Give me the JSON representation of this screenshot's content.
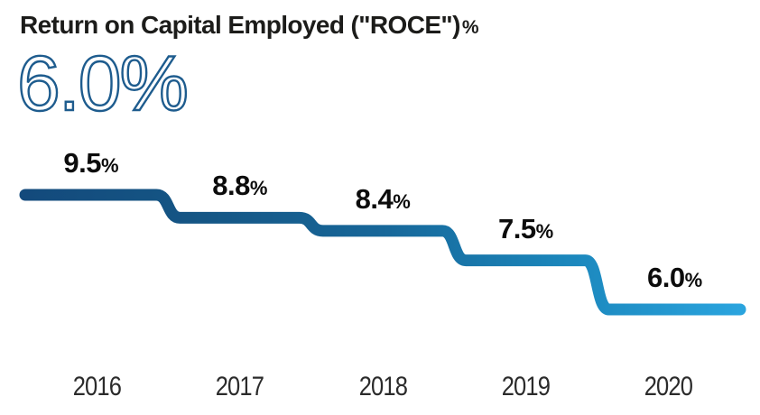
{
  "header": {
    "title": "Return on Capital Employed (\"ROCE\")",
    "title_suffix": "%",
    "headline_value": "6.0%"
  },
  "chart_data": {
    "type": "line",
    "subtype": "step-descending",
    "title": "Return on Capital Employed (\"ROCE\") %",
    "categories": [
      "2016",
      "2017",
      "2018",
      "2019",
      "2020"
    ],
    "values": [
      9.5,
      8.8,
      8.4,
      7.5,
      6.0
    ],
    "value_labels": [
      "9.5%",
      "8.8%",
      "8.4%",
      "7.5%",
      "6.0%"
    ],
    "xlabel": "",
    "ylabel": "",
    "ylim": [
      6.0,
      9.5
    ],
    "grid": false,
    "legend": false,
    "line_gradient": [
      "#134a7c",
      "#155685",
      "#176799",
      "#1b86bb",
      "#2aa4de"
    ],
    "line_thickness_px": 13,
    "label_color": "#0c0c0c"
  },
  "colors": {
    "background": "#ffffff",
    "title_color": "#1c1c1a",
    "headline_blue": "#1e5c8e",
    "axis_label_color": "#2b2b2b"
  }
}
